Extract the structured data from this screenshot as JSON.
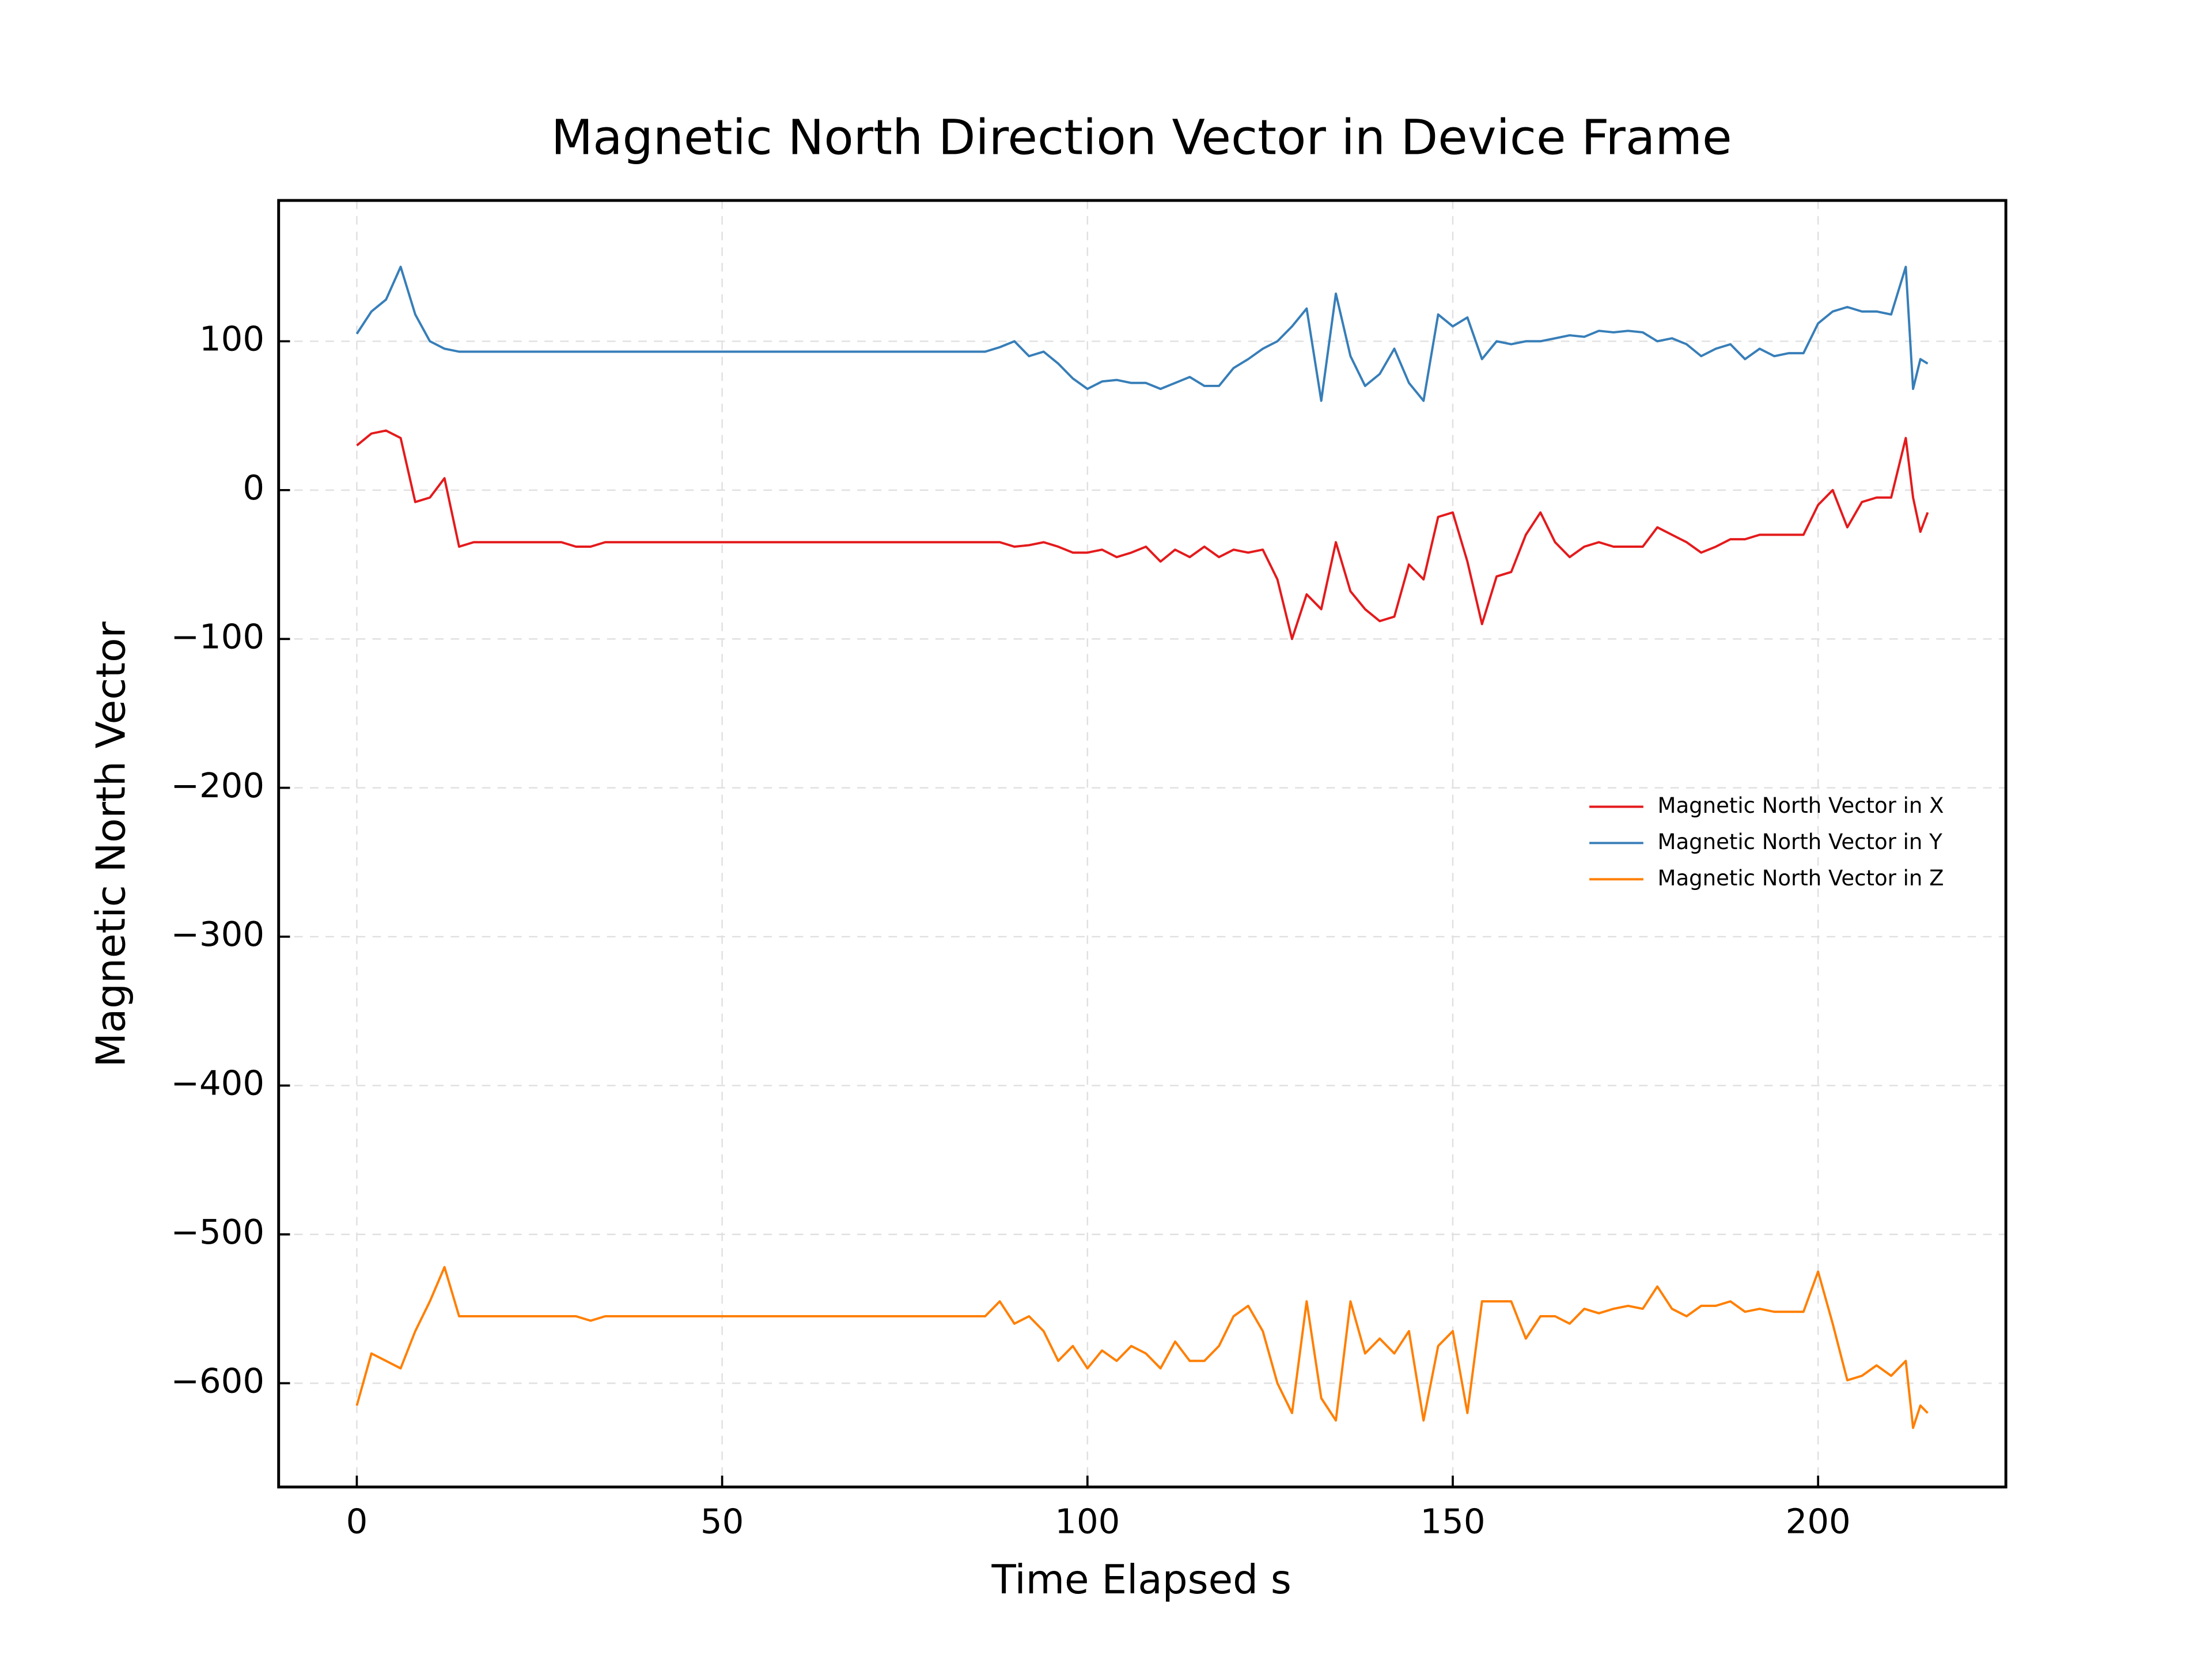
{
  "chart_data": {
    "type": "line",
    "title": "Magnetic North Direction Vector in Device Frame",
    "x_label": "Time Elapsed s",
    "y_label": "Magnetic North Vector",
    "x": [
      0,
      2,
      4,
      6,
      8,
      10,
      12,
      14,
      16,
      18,
      20,
      22,
      24,
      26,
      28,
      30,
      32,
      34,
      36,
      38,
      40,
      42,
      44,
      46,
      48,
      50,
      52,
      54,
      56,
      58,
      60,
      62,
      64,
      66,
      68,
      70,
      72,
      74,
      76,
      78,
      80,
      82,
      84,
      86,
      88,
      90,
      92,
      94,
      96,
      98,
      100,
      102,
      104,
      106,
      108,
      110,
      112,
      114,
      116,
      118,
      120,
      122,
      124,
      126,
      128,
      130,
      132,
      134,
      136,
      138,
      140,
      142,
      144,
      146,
      148,
      150,
      152,
      154,
      156,
      158,
      160,
      162,
      164,
      166,
      168,
      170,
      172,
      174,
      176,
      178,
      180,
      182,
      184,
      186,
      188,
      190,
      192,
      194,
      196,
      198,
      200,
      202,
      204,
      206,
      208,
      210,
      212,
      213,
      214,
      215
    ],
    "series": [
      {
        "name": "Magnetic North Vector in X",
        "color": "#e41a1c",
        "values": [
          30,
          38,
          40,
          35,
          -8,
          -5,
          8,
          -38,
          -35,
          -35,
          -35,
          -35,
          -35,
          -35,
          -35,
          -38,
          -38,
          -35,
          -35,
          -35,
          -35,
          -35,
          -35,
          -35,
          -35,
          -35,
          -35,
          -35,
          -35,
          -35,
          -35,
          -35,
          -35,
          -35,
          -35,
          -35,
          -35,
          -35,
          -35,
          -35,
          -35,
          -35,
          -35,
          -35,
          -35,
          -38,
          -37,
          -35,
          -38,
          -42,
          -42,
          -40,
          -45,
          -42,
          -38,
          -48,
          -40,
          -45,
          -38,
          -45,
          -40,
          -42,
          -40,
          -60,
          -100,
          -70,
          -80,
          -35,
          -68,
          -80,
          -88,
          -85,
          -50,
          -60,
          -18,
          -15,
          -48,
          -90,
          -58,
          -55,
          -30,
          -15,
          -35,
          -45,
          -38,
          -35,
          -38,
          -38,
          -38,
          -25,
          -30,
          -35,
          -42,
          -38,
          -33,
          -33,
          -30,
          -30,
          -30,
          -30,
          -10,
          0,
          -25,
          -8,
          -5,
          -5,
          35,
          -5,
          -28,
          -15
        ]
      },
      {
        "name": "Magnetic North Vector in Y",
        "color": "#377eb8",
        "values": [
          105,
          120,
          128,
          150,
          118,
          100,
          95,
          93,
          93,
          93,
          93,
          93,
          93,
          93,
          93,
          93,
          93,
          93,
          93,
          93,
          93,
          93,
          93,
          93,
          93,
          93,
          93,
          93,
          93,
          93,
          93,
          93,
          93,
          93,
          93,
          93,
          93,
          93,
          93,
          93,
          93,
          93,
          93,
          93,
          96,
          100,
          90,
          93,
          85,
          75,
          68,
          73,
          74,
          72,
          72,
          68,
          72,
          76,
          70,
          70,
          82,
          88,
          95,
          100,
          110,
          122,
          60,
          132,
          90,
          70,
          78,
          95,
          72,
          60,
          118,
          110,
          116,
          88,
          100,
          98,
          100,
          100,
          102,
          104,
          103,
          107,
          106,
          107,
          106,
          100,
          102,
          98,
          90,
          95,
          98,
          88,
          95,
          90,
          92,
          92,
          112,
          120,
          123,
          120,
          120,
          118,
          150,
          68,
          88,
          85
        ]
      },
      {
        "name": "Magnetic North Vector in Z",
        "color": "#ff7f00",
        "values": [
          -615,
          -580,
          -585,
          -590,
          -565,
          -545,
          -522,
          -555,
          -555,
          -555,
          -555,
          -555,
          -555,
          -555,
          -555,
          -555,
          -558,
          -555,
          -555,
          -555,
          -555,
          -555,
          -555,
          -555,
          -555,
          -555,
          -555,
          -555,
          -555,
          -555,
          -555,
          -555,
          -555,
          -555,
          -555,
          -555,
          -555,
          -555,
          -555,
          -555,
          -555,
          -555,
          -555,
          -555,
          -545,
          -560,
          -555,
          -565,
          -585,
          -575,
          -590,
          -578,
          -585,
          -575,
          -580,
          -590,
          -572,
          -585,
          -585,
          -575,
          -555,
          -548,
          -565,
          -600,
          -620,
          -545,
          -610,
          -625,
          -545,
          -580,
          -570,
          -580,
          -565,
          -625,
          -575,
          -565,
          -620,
          -545,
          -545,
          -545,
          -570,
          -555,
          -555,
          -560,
          -550,
          -553,
          -550,
          -548,
          -550,
          -535,
          -550,
          -555,
          -548,
          -548,
          -545,
          -552,
          -550,
          -552,
          -552,
          -552,
          -525,
          -560,
          -598,
          -595,
          -588,
          -595,
          -585,
          -630,
          -615,
          -620
        ]
      }
    ],
    "xlim": [
      -10.7,
      225.7
    ],
    "ylim": [
      -669.7,
      194.6
    ],
    "xticks": [
      0,
      50,
      100,
      150,
      200
    ],
    "yticks": [
      {
        "value": -600,
        "label": "−600"
      },
      {
        "value": -500,
        "label": "−500"
      },
      {
        "value": -400,
        "label": "−400"
      },
      {
        "value": -300,
        "label": "−300"
      },
      {
        "value": -200,
        "label": "−200"
      },
      {
        "value": -100,
        "label": "−100"
      },
      0,
      100
    ],
    "grid": true,
    "legend": "center right"
  }
}
